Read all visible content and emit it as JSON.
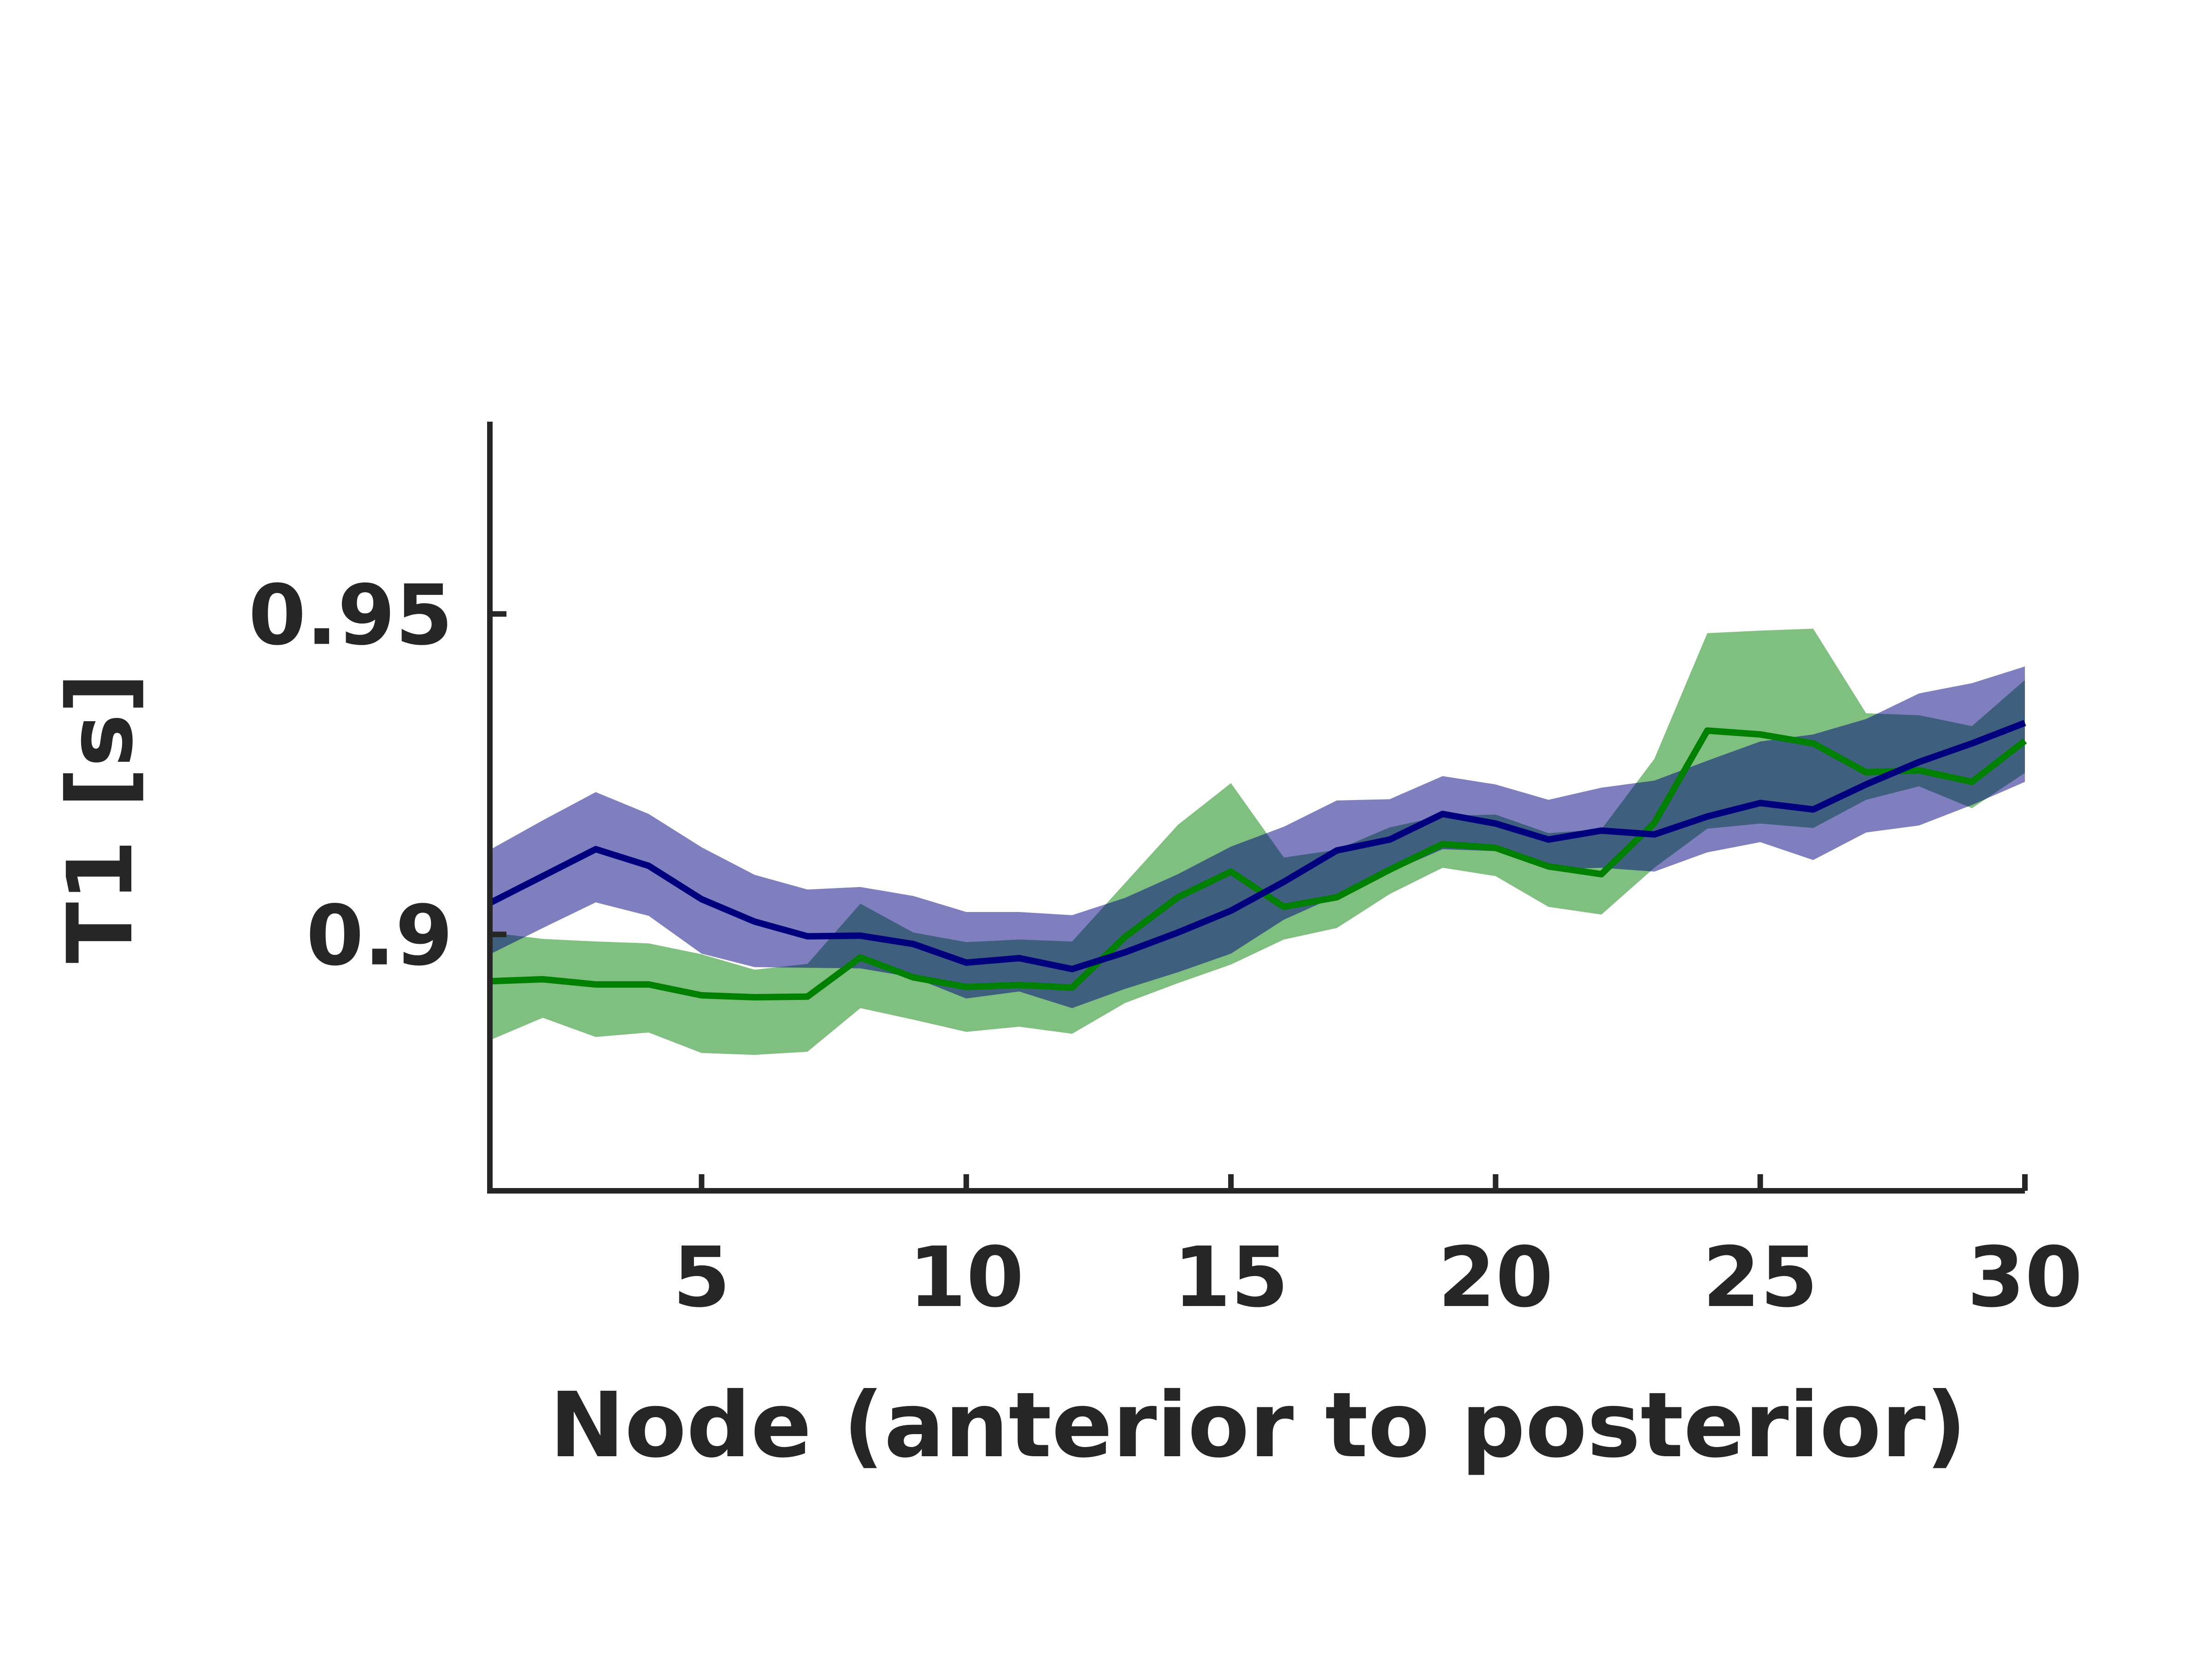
{
  "chart_data": {
    "type": "line",
    "xlabel": "Node (anterior to posterior)",
    "ylabel": "T1 [s]",
    "xlim": [
      1,
      30
    ],
    "ylim": [
      0.86,
      0.98
    ],
    "xticks": [
      5,
      10,
      15,
      20,
      25,
      30
    ],
    "xtick_labels": [
      "5",
      "10",
      "15",
      "20",
      "25",
      "30"
    ],
    "yticks": [
      0.9,
      0.95
    ],
    "ytick_labels": [
      "0.9",
      "0.95"
    ],
    "grid": false,
    "legend": "none",
    "x": [
      1,
      2,
      3,
      4,
      5,
      6,
      7,
      8,
      9,
      10,
      11,
      12,
      13,
      14,
      15,
      16,
      17,
      18,
      19,
      20,
      21,
      22,
      23,
      24,
      25,
      26,
      27,
      28,
      29,
      30
    ],
    "series": [
      {
        "color": "#008000",
        "band_color": "#008000",
        "band_opacity": 0.5,
        "values": [
          0.8927,
          0.893,
          0.8922,
          0.8922,
          0.8905,
          0.8902,
          0.8903,
          0.8964,
          0.8933,
          0.8918,
          0.8921,
          0.8917,
          0.8996,
          0.9058,
          0.9098,
          0.9043,
          0.9058,
          0.9101,
          0.9141,
          0.9135,
          0.9106,
          0.9094,
          0.9174,
          0.9318,
          0.9312,
          0.9298,
          0.9253,
          0.9256,
          0.9238,
          0.9302
        ],
        "lower": [
          0.8835,
          0.887,
          0.884,
          0.8847,
          0.8815,
          0.8812,
          0.8817,
          0.8885,
          0.8867,
          0.8848,
          0.8856,
          0.8845,
          0.8893,
          0.8924,
          0.8953,
          0.8992,
          0.901,
          0.9063,
          0.9104,
          0.9091,
          0.9043,
          0.9031,
          0.9104,
          0.9165,
          0.9173,
          0.9166,
          0.921,
          0.9231,
          0.9197,
          0.9252
        ],
        "upper": [
          0.9003,
          0.8993,
          0.8989,
          0.8986,
          0.8969,
          0.8945,
          0.8954,
          0.9048,
          0.9003,
          0.8988,
          0.8992,
          0.8989,
          0.908,
          0.9171,
          0.9236,
          0.912,
          0.9132,
          0.9167,
          0.9185,
          0.9187,
          0.9158,
          0.9164,
          0.9274,
          0.947,
          0.9474,
          0.9477,
          0.9345,
          0.9342,
          0.9325,
          0.9397
        ]
      },
      {
        "color": "#00007f",
        "band_color": "#00007f",
        "band_opacity": 0.5,
        "values": [
          0.9049,
          0.9091,
          0.9133,
          0.9107,
          0.9055,
          0.902,
          0.8997,
          0.8998,
          0.8985,
          0.8956,
          0.8963,
          0.8946,
          0.8972,
          0.9003,
          0.9037,
          0.9082,
          0.9131,
          0.9148,
          0.9188,
          0.9173,
          0.9148,
          0.9162,
          0.9156,
          0.9184,
          0.9205,
          0.9195,
          0.9234,
          0.9269,
          0.9298,
          0.933
        ],
        "lower": [
          0.8969,
          0.901,
          0.905,
          0.9029,
          0.897,
          0.8949,
          0.8948,
          0.8947,
          0.8933,
          0.89,
          0.8911,
          0.8885,
          0.8915,
          0.8941,
          0.897,
          0.9023,
          0.906,
          0.9097,
          0.9133,
          0.913,
          0.9101,
          0.9104,
          0.9098,
          0.9128,
          0.9144,
          0.9116,
          0.9159,
          0.917,
          0.9202,
          0.9238
        ],
        "upper": [
          0.9132,
          0.9178,
          0.9222,
          0.9188,
          0.9136,
          0.9093,
          0.907,
          0.9074,
          0.906,
          0.9035,
          0.9035,
          0.903,
          0.9057,
          0.9094,
          0.9137,
          0.9168,
          0.9209,
          0.9211,
          0.9247,
          0.9234,
          0.921,
          0.9229,
          0.924,
          0.9271,
          0.9301,
          0.9312,
          0.9336,
          0.9376,
          0.9392,
          0.9418
        ]
      }
    ]
  }
}
